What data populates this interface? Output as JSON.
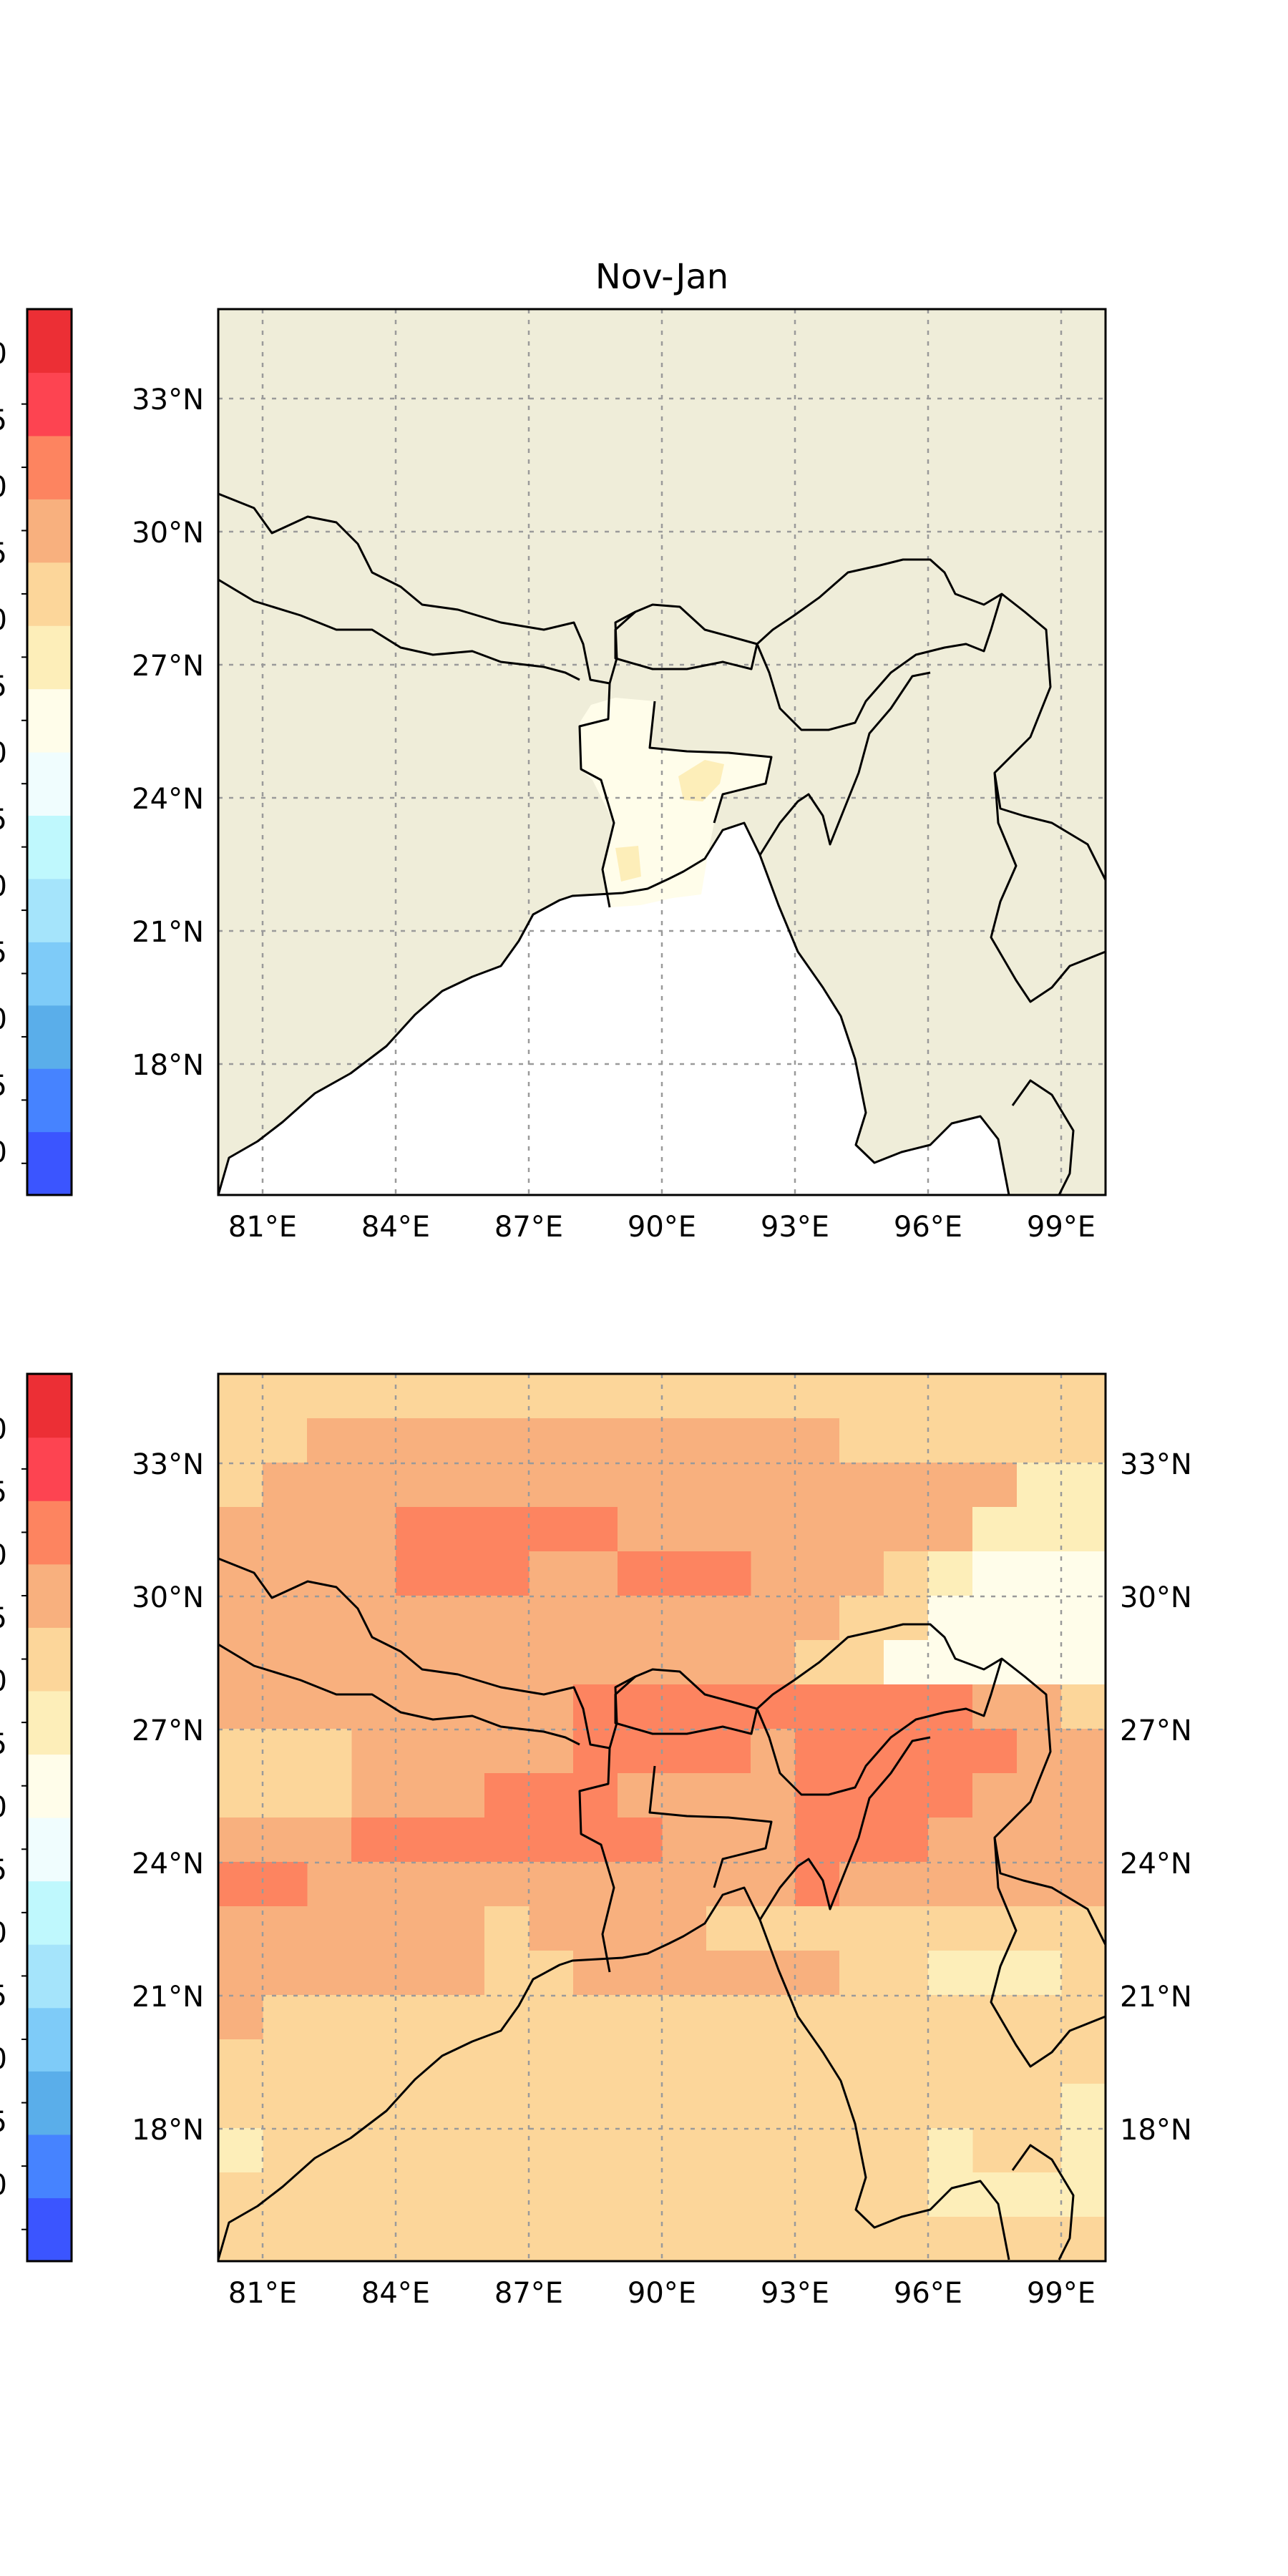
{
  "panel_top": {
    "title": "Nov-Jan",
    "lat_labels": [
      "33°N",
      "30°N",
      "27°N",
      "24°N",
      "21°N",
      "18°N"
    ],
    "lon_labels": [
      "81°E",
      "84°E",
      "87°E",
      "90°E",
      "93°E",
      "96°E",
      "99°E"
    ],
    "colorbar_tick_fragments": [
      "0",
      "5",
      "0",
      "5",
      "0",
      "5",
      "0",
      "5",
      "0",
      "5",
      "0",
      "5",
      "0"
    ]
  },
  "panel_bottom": {
    "lat_labels": [
      "33°N",
      "30°N",
      "27°N",
      "24°N",
      "21°N",
      "18°N"
    ],
    "lon_labels": [
      "81°E",
      "84°E",
      "87°E",
      "90°E",
      "93°E",
      "96°E",
      "99°E"
    ],
    "colorbar_tick_fragments": [
      "0",
      "5",
      "0",
      "5",
      "0",
      "5",
      "0",
      "5",
      "0",
      "5",
      "0",
      "5",
      "0"
    ]
  },
  "colors": {
    "land": "#efedd9",
    "ocean": "#ffffff",
    "colorbar": [
      "#3b55ff",
      "#4683ff",
      "#5aaeea",
      "#7ecbf8",
      "#a5e4fb",
      "#bff8fd",
      "#f0fdfe",
      "#fffdea",
      "#fdeeb9",
      "#fcd69a",
      "#f8b07e",
      "#fd8460",
      "#fd4451",
      "#ec2f35"
    ]
  }
}
